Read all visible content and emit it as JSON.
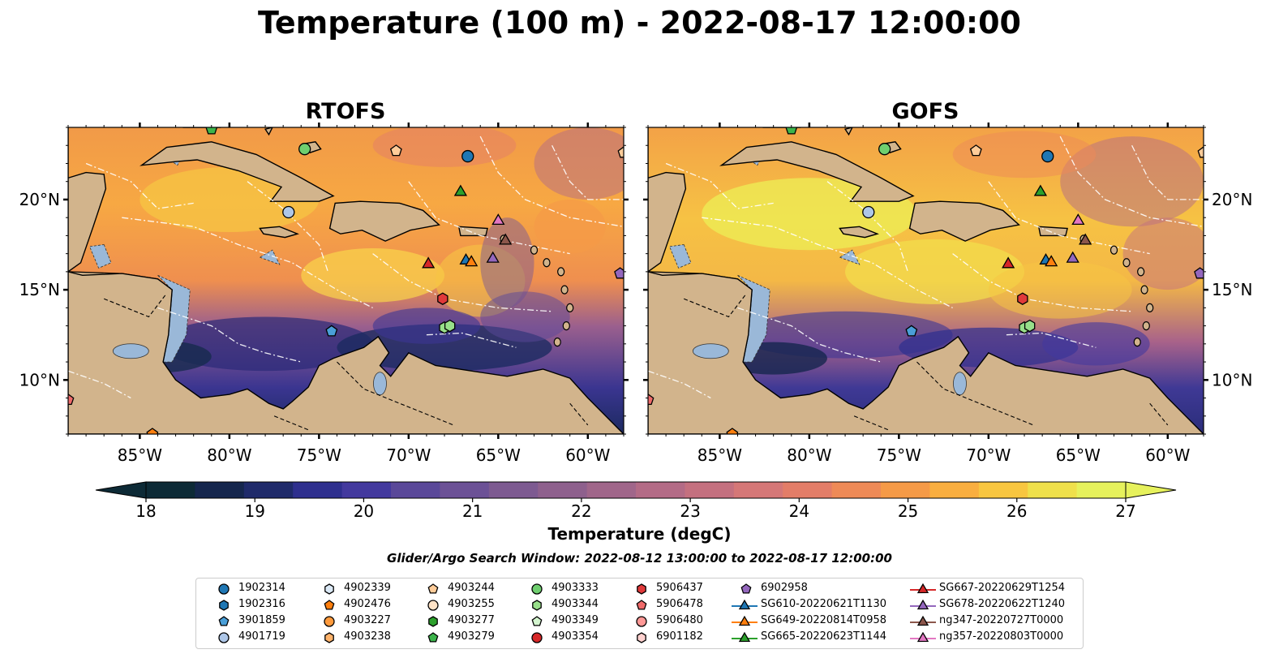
{
  "title": "Temperature (100 m) - 2022-08-17 12:00:00",
  "panels": [
    {
      "title": "RTOFS"
    },
    {
      "title": "GOFS"
    }
  ],
  "axes": {
    "lon_labels": [
      "85°W",
      "80°W",
      "75°W",
      "70°W",
      "65°W",
      "60°W"
    ],
    "lon_values": [
      -85,
      -80,
      -75,
      -70,
      -65,
      -60
    ],
    "lat_labels": [
      "20°N",
      "15°N",
      "10°N"
    ],
    "lat_values": [
      20,
      15,
      10
    ],
    "lon_range": [
      -89,
      -58
    ],
    "lat_range": [
      7,
      24
    ]
  },
  "colorbar": {
    "label": "Temperature (degC)",
    "ticks": [
      "18",
      "19",
      "20",
      "21",
      "22",
      "23",
      "24",
      "25",
      "26",
      "27"
    ],
    "tick_values": [
      18,
      19,
      20,
      21,
      22,
      23,
      24,
      25,
      26,
      27
    ],
    "range": [
      18,
      27
    ],
    "extend": "both",
    "colormap": "thermal",
    "colors": [
      "#0d2a36",
      "#15264d",
      "#1f2a6a",
      "#2e2f8e",
      "#43399e",
      "#5a4899",
      "#6c5196",
      "#7d5a91",
      "#8e608d",
      "#a0668a",
      "#b36b86",
      "#c4707f",
      "#d57777",
      "#e37d68",
      "#ee8a57",
      "#f59a47",
      "#f9ae3f",
      "#f8c640",
      "#efe04b",
      "#e6f15c"
    ]
  },
  "search_window": "Glider/Argo Search Window: 2022-08-12 13:00:00 to 2022-08-17 12:00:00",
  "map_colors": {
    "land": "#d2b48c",
    "shelf": "#9ab8d8",
    "coast": "#000000",
    "eez": "#ffffff"
  },
  "legend": [
    {
      "label": "1902314",
      "shape": "circle",
      "color": "#1f77b4"
    },
    {
      "label": "1902316",
      "shape": "hexagon",
      "color": "#1f77b4"
    },
    {
      "label": "3901859",
      "shape": "pentagon",
      "color": "#4a9fd8"
    },
    {
      "label": "4901719",
      "shape": "circle",
      "color": "#aec7e8"
    },
    {
      "label": "4902339",
      "shape": "hexagon",
      "color": "#dbe9f6"
    },
    {
      "label": "4902476",
      "shape": "pentagon",
      "color": "#ff7f0e"
    },
    {
      "label": "4903227",
      "shape": "circle",
      "color": "#ff9a3c"
    },
    {
      "label": "4903238",
      "shape": "hexagon",
      "color": "#ffb36b"
    },
    {
      "label": "4903244",
      "shape": "pentagon",
      "color": "#ffcc99"
    },
    {
      "label": "4903255",
      "shape": "circle",
      "color": "#ffe3c7"
    },
    {
      "label": "4903277",
      "shape": "hexagon",
      "color": "#2ca02c"
    },
    {
      "label": "4903279",
      "shape": "pentagon",
      "color": "#3cb44b"
    },
    {
      "label": "4903333",
      "shape": "circle",
      "color": "#6fcf6f"
    },
    {
      "label": "4903344",
      "shape": "hexagon",
      "color": "#98df8a"
    },
    {
      "label": "4903349",
      "shape": "pentagon",
      "color": "#d4f5cf"
    },
    {
      "label": "4903354",
      "shape": "circle",
      "color": "#d62728"
    },
    {
      "label": "5906437",
      "shape": "hexagon",
      "color": "#e0393a"
    },
    {
      "label": "5906478",
      "shape": "pentagon",
      "color": "#ef6a6a"
    },
    {
      "label": "5906480",
      "shape": "circle",
      "color": "#ff9896"
    },
    {
      "label": "6901182",
      "shape": "hexagon",
      "color": "#ffd1cf"
    },
    {
      "label": "6902958",
      "shape": "pentagon",
      "color": "#9467bd"
    },
    {
      "label": "SG610-20220621T1130",
      "shape": "triangle-line",
      "color": "#1f77b4"
    },
    {
      "label": "SG649-20220814T0958",
      "shape": "triangle-line",
      "color": "#ff7f0e"
    },
    {
      "label": "SG665-20220623T1144",
      "shape": "triangle-line",
      "color": "#2ca02c"
    },
    {
      "label": "SG667-20220629T1254",
      "shape": "triangle-line",
      "color": "#d62728"
    },
    {
      "label": "SG678-20220622T1240",
      "shape": "triangle-line",
      "color": "#9467bd"
    },
    {
      "label": "ng347-20220727T0000",
      "shape": "triangle-line",
      "color": "#8c564b"
    },
    {
      "label": "ng357-20220803T0000",
      "shape": "triangle-line",
      "color": "#e377c2"
    }
  ],
  "markers": [
    {
      "id": "1902314",
      "lon": -66.7,
      "lat": 22.4
    },
    {
      "id": "4903333",
      "lon": -75.8,
      "lat": 22.8
    },
    {
      "id": "4903279",
      "lon": -81.0,
      "lat": 23.9
    },
    {
      "id": "4903244",
      "lon": -70.7,
      "lat": 22.7
    },
    {
      "id": "4903244",
      "lon": -58.0,
      "lat": 22.6
    },
    {
      "id": "4901719",
      "lon": -76.7,
      "lat": 19.3
    },
    {
      "id": "SG665-20220623T1144",
      "lon": -67.1,
      "lat": 20.5
    },
    {
      "id": "ng357-20220803T0000",
      "lon": -65.0,
      "lat": 18.9
    },
    {
      "id": "ng347-20220727T0000",
      "lon": -64.6,
      "lat": 17.8
    },
    {
      "id": "SG667-20220629T1254",
      "lon": -68.9,
      "lat": 16.5
    },
    {
      "id": "SG610-20220621T1130",
      "lon": -66.8,
      "lat": 16.7
    },
    {
      "id": "SG649-20220814T0958",
      "lon": -66.5,
      "lat": 16.6
    },
    {
      "id": "SG678-20220622T1240",
      "lon": -65.3,
      "lat": 16.8
    },
    {
      "id": "6902958",
      "lon": -58.2,
      "lat": 15.9
    },
    {
      "id": "5906437",
      "lon": -68.1,
      "lat": 14.5
    },
    {
      "id": "3901859",
      "lon": -74.3,
      "lat": 12.7
    },
    {
      "id": "4903344",
      "lon": -68.0,
      "lat": 12.9
    },
    {
      "id": "4903344",
      "lon": -67.7,
      "lat": 13.0
    },
    {
      "id": "5906478",
      "lon": -89.0,
      "lat": 8.9
    },
    {
      "id": "4902476",
      "lon": -84.3,
      "lat": 7.0
    }
  ]
}
